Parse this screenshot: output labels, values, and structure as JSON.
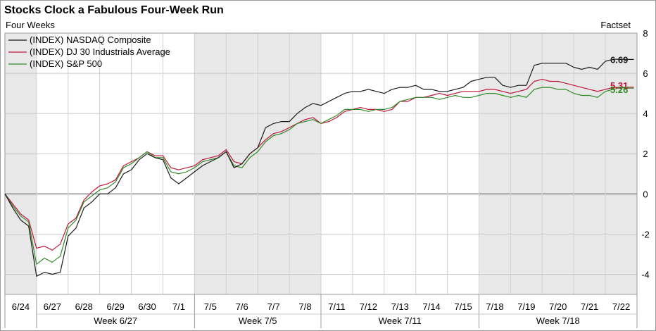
{
  "title": "Stocks Clock a Fabulous Four-Week Run",
  "subtitle": "Four Weeks",
  "source": "Factset",
  "colors": {
    "nasdaq": "#1a1a1a",
    "dj": "#c0143c",
    "sp": "#2e8b24",
    "shade": "#e8e8e8"
  },
  "chart_data": {
    "type": "line",
    "ylim": [
      -5,
      8
    ],
    "yticks": [
      -4,
      -2,
      0,
      2,
      4,
      6,
      8
    ],
    "grid": true,
    "legend": "top-left",
    "day_labels": [
      "6/24",
      "6/27",
      "6/28",
      "6/29",
      "6/30",
      "7/1",
      "7/5",
      "7/6",
      "7/7",
      "7/8",
      "7/11",
      "7/12",
      "7/13",
      "7/14",
      "7/15",
      "7/18",
      "7/19",
      "7/20",
      "7/21",
      "7/22"
    ],
    "week_labels": [
      "Week 6/27",
      "Week 7/5",
      "Week 7/11",
      "Week 7/18"
    ],
    "x": [
      0,
      0.25,
      0.5,
      0.75,
      1,
      1.25,
      1.5,
      1.75,
      2,
      2.25,
      2.5,
      2.75,
      3,
      3.25,
      3.5,
      3.75,
      4,
      4.25,
      4.5,
      4.75,
      5,
      5.25,
      5.5,
      5.75,
      6,
      6.25,
      6.5,
      6.75,
      7,
      7.25,
      7.5,
      7.75,
      8,
      8.25,
      8.5,
      8.75,
      9,
      9.25,
      9.5,
      9.75,
      10,
      10.25,
      10.5,
      10.75,
      11,
      11.25,
      11.5,
      11.75,
      12,
      12.25,
      12.5,
      12.75,
      13,
      13.25,
      13.5,
      13.75,
      14,
      14.25,
      14.5,
      14.75,
      15,
      15.25,
      15.5,
      15.75,
      16,
      16.25,
      16.5,
      16.75,
      17,
      17.25,
      17.5,
      17.75,
      18,
      18.25,
      18.5,
      18.75,
      19,
      19.25,
      19.5,
      19.75
    ],
    "series": [
      {
        "name": "(INDEX) NASDAQ Composite",
        "end_label": "6.69",
        "values": [
          0,
          -0.7,
          -1.3,
          -1.6,
          -4.1,
          -3.9,
          -4.0,
          -3.9,
          -2.1,
          -1.7,
          -0.7,
          -0.4,
          0.0,
          0.0,
          0.3,
          1.0,
          1.2,
          1.7,
          2.0,
          1.8,
          1.7,
          0.8,
          0.5,
          0.8,
          1.1,
          1.4,
          1.6,
          1.8,
          2.1,
          1.3,
          1.5,
          2.0,
          2.3,
          3.3,
          3.5,
          3.6,
          3.6,
          4.0,
          4.3,
          4.5,
          4.4,
          4.6,
          4.8,
          5.0,
          5.1,
          5.1,
          5.2,
          5.1,
          5.0,
          5.2,
          5.3,
          5.3,
          5.4,
          5.2,
          5.2,
          5.1,
          5.1,
          5.2,
          5.3,
          5.6,
          5.7,
          5.8,
          5.8,
          5.4,
          5.3,
          5.4,
          5.4,
          6.4,
          6.5,
          6.5,
          6.5,
          6.5,
          6.3,
          6.2,
          6.3,
          6.2,
          6.6,
          6.7,
          6.7,
          6.69
        ]
      },
      {
        "name": "(INDEX) DJ 30 Industrials Average",
        "end_label": "5.31",
        "values": [
          0,
          -0.5,
          -1.0,
          -1.3,
          -2.7,
          -2.6,
          -2.8,
          -2.5,
          -1.5,
          -1.2,
          -0.3,
          0.1,
          0.4,
          0.5,
          0.7,
          1.4,
          1.6,
          1.8,
          2.1,
          1.9,
          1.9,
          1.3,
          1.2,
          1.3,
          1.4,
          1.7,
          1.8,
          1.9,
          2.2,
          1.6,
          1.5,
          2.0,
          2.3,
          2.7,
          3.0,
          3.1,
          3.3,
          3.5,
          3.7,
          3.8,
          3.5,
          3.6,
          3.8,
          4.1,
          4.2,
          4.3,
          4.2,
          4.2,
          4.1,
          4.2,
          4.6,
          4.6,
          4.8,
          4.8,
          4.9,
          5.0,
          4.9,
          5.0,
          5.1,
          5.1,
          5.1,
          5.2,
          5.2,
          5.1,
          5.0,
          5.1,
          5.2,
          5.6,
          5.7,
          5.6,
          5.6,
          5.5,
          5.4,
          5.3,
          5.2,
          5.1,
          5.2,
          5.3,
          5.3,
          5.31
        ]
      },
      {
        "name": "(INDEX) S&P 500",
        "end_label": "5.26",
        "values": [
          0,
          -0.6,
          -1.1,
          -1.4,
          -3.5,
          -3.2,
          -3.4,
          -3.1,
          -1.7,
          -1.3,
          -0.4,
          -0.1,
          0.2,
          0.3,
          0.6,
          1.3,
          1.5,
          1.8,
          2.1,
          1.8,
          1.8,
          1.1,
          1.0,
          1.1,
          1.3,
          1.6,
          1.7,
          1.8,
          2.1,
          1.4,
          1.3,
          1.8,
          2.1,
          2.6,
          2.9,
          3.0,
          3.2,
          3.5,
          3.6,
          3.7,
          3.5,
          3.7,
          3.9,
          4.2,
          4.2,
          4.2,
          4.1,
          4.2,
          4.2,
          4.3,
          4.6,
          4.7,
          4.8,
          4.8,
          4.8,
          4.7,
          4.8,
          4.9,
          4.8,
          4.8,
          4.9,
          5.0,
          5.0,
          4.9,
          4.8,
          4.9,
          4.8,
          5.2,
          5.3,
          5.3,
          5.2,
          5.2,
          5.0,
          4.9,
          4.9,
          4.8,
          5.1,
          5.2,
          5.3,
          5.26
        ]
      }
    ]
  }
}
